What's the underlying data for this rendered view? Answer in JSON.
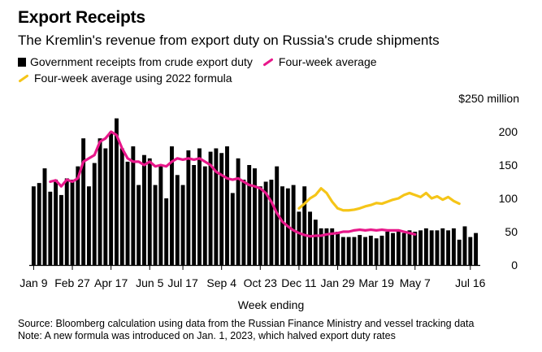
{
  "title": "Export Receipts",
  "subtitle": "The Kremlin's revenue from export duty on Russia's crude shipments",
  "legend": {
    "bars": "Government receipts from crude export duty",
    "avg": "Four-week average",
    "avg2022": "Four-week average using 2022 formula"
  },
  "colors": {
    "bars": "#000000",
    "avg": "#e8178a",
    "avg2022": "#f5c518"
  },
  "unit_label": "$250 million",
  "footer": {
    "source": "Source: Bloomberg calculation using data from the Russian Finance Ministry and vessel tracking data",
    "note": "Note: A new formula was introduced on Jan. 1, 2023, which halved export duty rates"
  },
  "chart_data": {
    "type": "bar",
    "title": "Export Receipts",
    "xlabel": "Week ending",
    "ylabel": "$250 million",
    "ylim": [
      0,
      250
    ],
    "yticks": [
      0,
      50,
      100,
      150,
      200
    ],
    "grid": false,
    "xtick_labels": [
      {
        "label": "Jan 9",
        "index": 0
      },
      {
        "label": "Feb 27",
        "index": 7
      },
      {
        "label": "Apr 17",
        "index": 14
      },
      {
        "label": "Jun 5",
        "index": 21
      },
      {
        "label": "Jul 17",
        "index": 27
      },
      {
        "label": "Sep 4",
        "index": 34
      },
      {
        "label": "Oct 23",
        "index": 41
      },
      {
        "label": "Dec 11",
        "index": 48
      },
      {
        "label": "Jan 29",
        "index": 55
      },
      {
        "label": "Mar 19",
        "index": 62
      },
      {
        "label": "May 7",
        "index": 69
      },
      {
        "label": "Jul 16",
        "index": 79
      }
    ],
    "series": [
      {
        "name": "Government receipts from crude export duty",
        "type": "bar",
        "values": [
          118,
          123,
          145,
          110,
          128,
          105,
          130,
          128,
          148,
          190,
          118,
          153,
          190,
          175,
          200,
          220,
          175,
          155,
          178,
          120,
          165,
          160,
          120,
          150,
          100,
          178,
          135,
          120,
          172,
          150,
          175,
          148,
          170,
          175,
          168,
          178,
          108,
          160,
          128,
          150,
          145,
          118,
          125,
          128,
          148,
          118,
          115,
          120,
          80,
          118,
          80,
          68,
          55,
          55,
          55,
          50,
          42,
          42,
          42,
          45,
          42,
          44,
          40,
          44,
          50,
          48,
          52,
          48,
          52,
          50,
          52,
          55,
          52,
          52,
          55,
          52,
          55,
          38,
          58,
          42,
          48
        ]
      },
      {
        "name": "Four-week average",
        "type": "line",
        "start_index": 3,
        "values": [
          125,
          127,
          118,
          128,
          125,
          130,
          155,
          160,
          165,
          185,
          190,
          200,
          195,
          175,
          160,
          155,
          155,
          150,
          155,
          148,
          150,
          148,
          155,
          160,
          158,
          160,
          158,
          160,
          155,
          150,
          140,
          135,
          130,
          128,
          130,
          125,
          120,
          118,
          115,
          108,
          95,
          78,
          65,
          58,
          52,
          48,
          45,
          43,
          44,
          44,
          46,
          47,
          48,
          50,
          50,
          52,
          53,
          52,
          53,
          52,
          53,
          52,
          52,
          52,
          50,
          48,
          46
        ]
      },
      {
        "name": "Four-week average using 2022 formula",
        "type": "line",
        "start_index": 48,
        "values": [
          85,
          92,
          100,
          105,
          115,
          108,
          95,
          85,
          82,
          82,
          83,
          85,
          88,
          90,
          93,
          92,
          95,
          98,
          100,
          105,
          108,
          105,
          102,
          108,
          100,
          103,
          98,
          102,
          96,
          92
        ]
      }
    ]
  }
}
